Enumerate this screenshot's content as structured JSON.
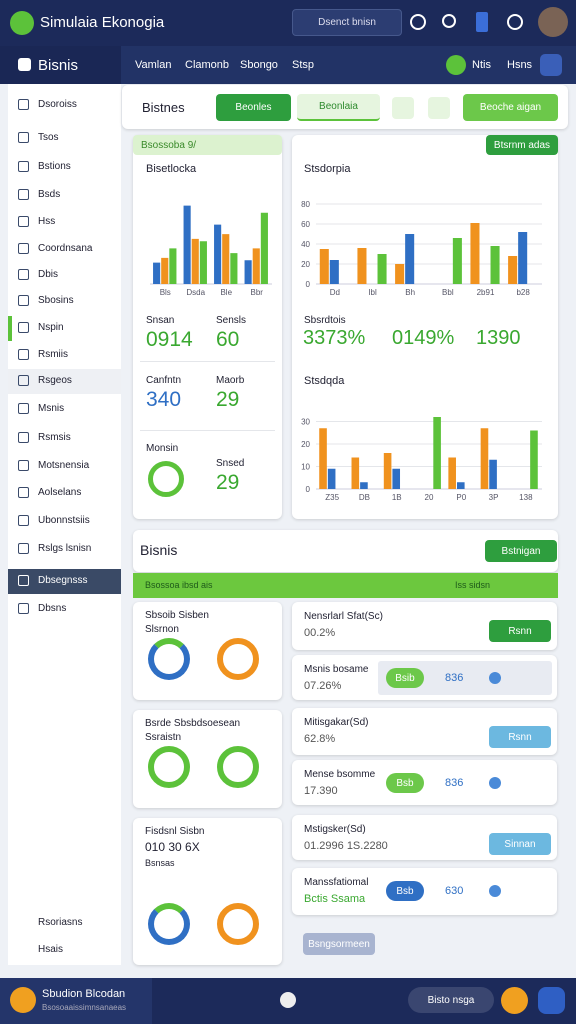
{
  "header": {
    "title": "Simulaia Ekonogia",
    "search": "Dsenct bnisn"
  },
  "nav": {
    "items": [
      "Vamlan",
      "Clamonb",
      "Sbongo",
      "Stsp"
    ],
    "right": [
      "Ntis",
      "Hsns"
    ]
  },
  "sidebar": {
    "title": "Bisnis",
    "items": [
      "Dsoroiss",
      "Tsos",
      "Bstions",
      "Bsds",
      "Hss",
      "Coordnsana",
      "Dbis",
      "Sbosins",
      "Nspin",
      "Rsmiis",
      "Rsgeos",
      "Msnis",
      "Rsmsis",
      "Motsnensia",
      "Aolselans",
      "Ubonnstsiis",
      "Rslgs lsnisn",
      "Dbsegnsss",
      "Dbsns"
    ],
    "bottom": [
      "Rsoriasns",
      "Hsais"
    ]
  },
  "toolbar": {
    "title": "Bistnes",
    "buttons": [
      "Beonles",
      "Beonlaia",
      "Beoche aigan"
    ]
  },
  "card1": {
    "tag": "Bsossoba 9/",
    "title": "Bisetlocka",
    "chart": {
      "type": "bar",
      "categories": [
        "Bls",
        "Dsda",
        "Ble",
        "Bbr"
      ],
      "ylim": [
        0,
        80
      ],
      "series": [
        {
          "color": "#2f6fc4",
          "values": [
            18,
            66,
            50,
            20
          ]
        },
        {
          "color": "#f0921e",
          "values": [
            22,
            38,
            42,
            30
          ]
        },
        {
          "color": "#5cc23a",
          "values": [
            30,
            36,
            26,
            60
          ]
        }
      ]
    },
    "stats": [
      {
        "label": "Snsan",
        "value": "0914"
      },
      {
        "label": "Sensls",
        "value": "60"
      },
      {
        "label": "Canfntn",
        "value": "340"
      },
      {
        "label": "Maorb",
        "value": "29"
      },
      {
        "label": "Monsin"
      },
      {
        "label": "Snsed",
        "value": "29"
      }
    ]
  },
  "card2": {
    "button": "Btsrnm adas",
    "chart1": {
      "type": "bar",
      "title": "Stsdorpia",
      "categories": [
        "Dd",
        "Ibl",
        "Bh",
        "Bbl",
        "2b91",
        "b28"
      ],
      "ylim": [
        0,
        90
      ],
      "yticks": [
        0,
        20,
        40,
        60,
        80
      ],
      "series": [
        {
          "color": "#f0921e",
          "values": [
            35,
            36,
            20,
            0,
            61,
            28
          ]
        },
        {
          "color": "#2f6fc4",
          "values": [
            24,
            0,
            50,
            0,
            0,
            52
          ]
        },
        {
          "color": "#5cc23a",
          "values": [
            0,
            30,
            0,
            46,
            38,
            0
          ]
        }
      ]
    },
    "stats_label": "Sbsrdtois",
    "stats": [
      "3373%",
      "0149%",
      "1390"
    ],
    "chart2": {
      "type": "bar",
      "title": "Stsdqda",
      "categories": [
        "Z35",
        "DB",
        "1B",
        "20",
        "P0",
        "3P",
        "138"
      ],
      "ylim": [
        0,
        40
      ],
      "yticks": [
        0,
        10,
        20,
        30
      ],
      "series": [
        {
          "color": "#f0921e",
          "values": [
            27,
            14,
            16,
            0,
            14,
            27,
            0
          ]
        },
        {
          "color": "#2f6fc4",
          "values": [
            9,
            3,
            9,
            0,
            3,
            13,
            0
          ]
        },
        {
          "color": "#5cc23a",
          "values": [
            0,
            0,
            0,
            32,
            0,
            0,
            26
          ]
        }
      ]
    }
  },
  "section": {
    "title": "Bisnis",
    "button": "Bstnigan",
    "bar": "Bsossoa ibsd ais",
    "bar_right": "Iss sidsn",
    "left": [
      {
        "title": "Sbsoib Sisben",
        "sub": "Slsrnon"
      },
      {
        "title": "Bsrde Sbsbdsoesean",
        "sub": "Ssraistn"
      },
      {
        "title": "Fisdsnl Sisbn",
        "sub": "010 30 6X",
        "sub2": "Bsnsas"
      }
    ],
    "rows": [
      {
        "title": "Nensrlarl Sfat(Sc)",
        "value": "00.2%",
        "button": "Rsnn"
      },
      {
        "title": "Msnis bosame",
        "value": "07.26%",
        "pill": "Bsib",
        "num": "836"
      },
      {
        "title": "Mitisgakar(Sd)",
        "value": "62.8%",
        "button": "Rsnn"
      },
      {
        "title": "Mense bsomme",
        "value": "17.390",
        "pill": "Bsb",
        "num": "836"
      },
      {
        "title": "Mstigsker(Sd)",
        "value": "01.2996 1S.2280",
        "button": "Sinnan"
      },
      {
        "title": "Manssfatiomal",
        "value": "Bctis Ssama",
        "pill": "Bsb",
        "num": "630"
      }
    ],
    "final": "Bsngsormeen"
  },
  "footer": {
    "name": "Sbudion Blcodan",
    "sub": "Bsosoaaissimnsanaeas",
    "button": "Bisto nsga"
  }
}
